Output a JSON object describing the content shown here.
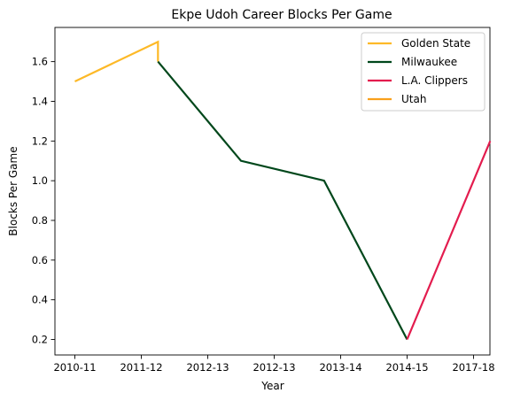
{
  "chart_data": {
    "type": "line",
    "title": "Ekpe Udoh Career Blocks Per Game",
    "xlabel": "Year",
    "ylabel": "Blocks Per Game",
    "x_ticks": [
      "2010-11",
      "2011-12",
      "2012-13",
      "2012-13",
      "2013-14",
      "2014-15",
      "2017-18"
    ],
    "ylim": [
      0.13,
      1.77
    ],
    "y_ticks": [
      0.2,
      0.4,
      0.6,
      0.8,
      1.0,
      1.2,
      1.4,
      1.6
    ],
    "grid": false,
    "legend_position": "top-right",
    "series": [
      {
        "name": "Golden State",
        "color": "#FDB927",
        "points": [
          {
            "x": 0,
            "y": 1.5
          },
          {
            "x": 1.25,
            "y": 1.7
          },
          {
            "x": 1.25,
            "y": 1.6
          }
        ]
      },
      {
        "name": "Milwaukee",
        "color": "#00471B",
        "points": [
          {
            "x": 1.25,
            "y": 1.6
          },
          {
            "x": 2.5,
            "y": 1.1
          },
          {
            "x": 3.75,
            "y": 1.0
          },
          {
            "x": 5,
            "y": 0.2
          }
        ]
      },
      {
        "name": "L.A. Clippers",
        "color": "#E31C4E",
        "points": [
          {
            "x": 5,
            "y": 0.2
          },
          {
            "x": 6.25,
            "y": 1.2
          }
        ]
      },
      {
        "name": "Utah",
        "color": "#F9A01B",
        "points": []
      }
    ]
  }
}
